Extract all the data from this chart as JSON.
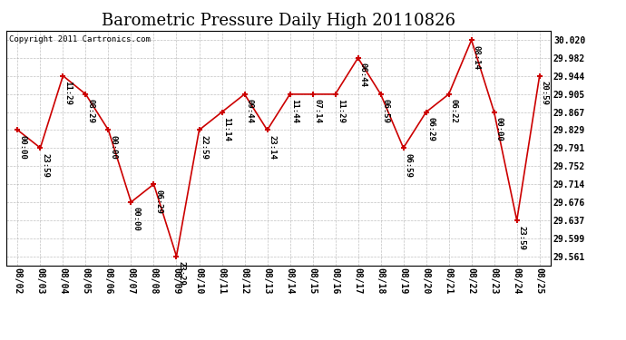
{
  "title": "Barometric Pressure Daily High 20110826",
  "copyright": "Copyright 2011 Cartronics.com",
  "dates": [
    "08/02",
    "08/03",
    "08/04",
    "08/05",
    "08/06",
    "08/07",
    "08/08",
    "08/09",
    "08/10",
    "08/11",
    "08/12",
    "08/13",
    "08/14",
    "08/15",
    "08/16",
    "08/17",
    "08/18",
    "08/19",
    "08/20",
    "08/21",
    "08/22",
    "08/23",
    "08/24",
    "08/25"
  ],
  "values": [
    29.829,
    29.791,
    29.944,
    29.905,
    29.829,
    29.676,
    29.714,
    29.561,
    29.829,
    29.867,
    29.905,
    29.829,
    29.905,
    29.905,
    29.905,
    29.982,
    29.905,
    29.791,
    29.867,
    29.905,
    30.02,
    29.867,
    29.637,
    29.944
  ],
  "labels": [
    "00:00",
    "23:59",
    "11:29",
    "08:29",
    "00:00",
    "00:00",
    "06:29",
    "23:29",
    "22:59",
    "11:14",
    "09:44",
    "23:14",
    "11:44",
    "07:14",
    "11:29",
    "06:44",
    "06:59",
    "06:59",
    "06:29",
    "06:22",
    "08:14",
    "00:00",
    "23:59",
    "20:59"
  ],
  "line_color": "#cc0000",
  "marker_color": "#cc0000",
  "bg_color": "#ffffff",
  "grid_color": "#999999",
  "title_fontsize": 13,
  "label_fontsize": 6.5,
  "yticks": [
    29.561,
    29.599,
    29.637,
    29.676,
    29.714,
    29.752,
    29.791,
    29.829,
    29.867,
    29.905,
    29.944,
    29.982,
    30.02
  ],
  "ymin": 29.542,
  "ymax": 30.04
}
